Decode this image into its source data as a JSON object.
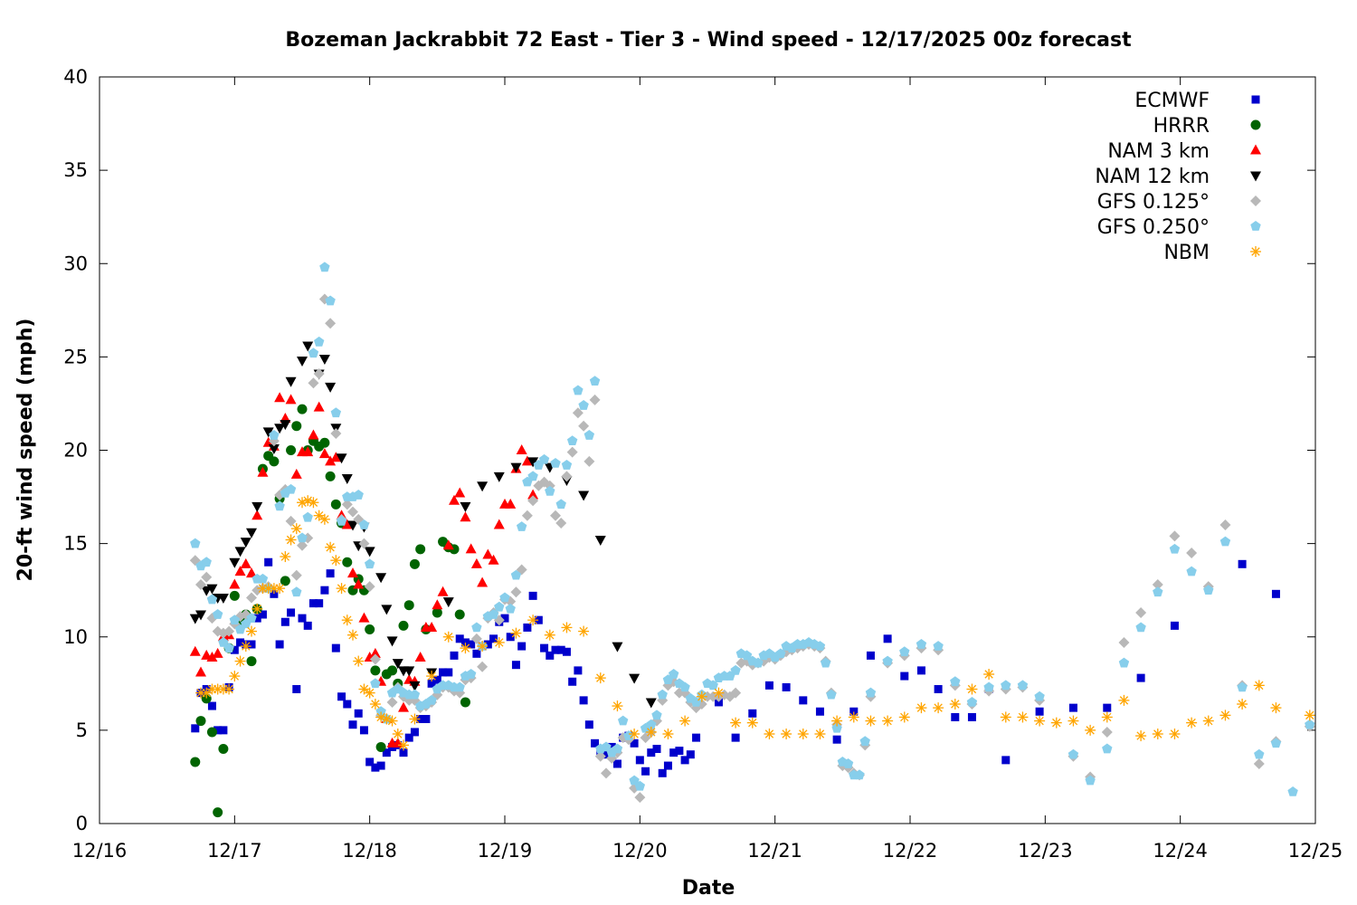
{
  "chart_data": {
    "type": "scatter",
    "title": "Bozeman Jackrabbit 72 East - Tier 3 - Wind speed - 12/17/2025 00z forecast",
    "xlabel": "Date",
    "ylabel": "20-ft wind speed (mph)",
    "x_units": "hours since 12/16 00:00",
    "xlim": [
      0,
      216
    ],
    "ylim": [
      0,
      40
    ],
    "xticks": [
      {
        "h": 0,
        "label": "12/16"
      },
      {
        "h": 24,
        "label": "12/17"
      },
      {
        "h": 48,
        "label": "12/18"
      },
      {
        "h": 72,
        "label": "12/19"
      },
      {
        "h": 96,
        "label": "12/20"
      },
      {
        "h": 120,
        "label": "12/21"
      },
      {
        "h": 144,
        "label": "12/22"
      },
      {
        "h": 168,
        "label": "12/23"
      },
      {
        "h": 192,
        "label": "12/24"
      },
      {
        "h": 216,
        "label": "12/25"
      }
    ],
    "yticks": [
      0,
      5,
      10,
      15,
      20,
      25,
      30,
      35,
      40
    ],
    "grid": false,
    "legend_position": "top-right",
    "series": [
      {
        "name": "ECMWF",
        "marker": "square",
        "color": "#0000cc",
        "segments": [
          {
            "h0": 17,
            "dh": 1,
            "v": [
              5.1,
              7.0,
              7.2,
              6.3,
              5.0,
              5.0,
              7.3,
              9.3,
              9.7,
              9.6,
              9.6,
              11.0,
              11.2,
              14.0,
              12.3,
              9.6,
              10.8,
              11.3,
              7.2,
              11.0,
              10.6,
              11.8,
              11.8,
              12.5,
              13.4,
              9.4,
              6.8,
              6.4,
              5.3,
              5.9,
              5.0,
              3.3,
              3.0,
              3.1,
              3.8,
              4.1,
              4.2,
              3.8,
              4.6,
              4.9,
              5.6,
              5.6,
              7.5,
              7.7,
              8.1,
              8.1,
              9.0,
              9.9,
              9.7,
              9.6,
              9.1,
              9.5,
              9.6,
              9.9,
              10.8,
              11.0,
              10.0,
              8.5,
              9.5,
              10.5,
              12.2,
              10.9,
              9.4,
              9.0,
              9.3,
              9.3,
              9.2,
              7.6,
              8.2,
              6.6,
              5.3,
              4.3,
              3.9,
              3.7,
              4.1,
              3.2,
              4.6,
              4.7,
              4.3,
              3.4,
              2.8,
              3.8,
              4.0,
              2.7,
              3.1,
              3.8,
              3.9,
              3.4,
              3.7,
              4.6
            ]
          },
          {
            "h0": 110,
            "dh": 3,
            "v": [
              6.5,
              4.6,
              5.9,
              7.4,
              7.3,
              6.6,
              6.0,
              4.5,
              6.0,
              9.0,
              9.9,
              7.9,
              8.2,
              7.2,
              5.7,
              5.7,
              7.2
            ]
          },
          {
            "h0": 161,
            "dh": 6,
            "v": [
              3.4,
              6.0,
              6.2,
              6.2,
              7.8,
              10.6,
              null,
              13.9,
              12.3
            ]
          }
        ]
      },
      {
        "name": "HRRR",
        "marker": "circle",
        "color": "#006400",
        "segments": [
          {
            "h0": 17,
            "dh": 1,
            "v": [
              3.3,
              5.5,
              6.7,
              4.9,
              0.6,
              4.0,
              9.4,
              12.2,
              10.8,
              11.2,
              8.7,
              11.5,
              19.0,
              19.7,
              19.4,
              17.4,
              13.0,
              20.0,
              21.3,
              22.2,
              20.0,
              20.5,
              20.2,
              20.4,
              18.6,
              17.1,
              16.1,
              14.0,
              12.5,
              13.1,
              12.5,
              10.4,
              8.2,
              4.1,
              8.0,
              8.2,
              7.5,
              10.6,
              11.7,
              13.9,
              14.7,
              10.4,
              null,
              11.3,
              15.1,
              14.8,
              14.7,
              11.2,
              6.5
            ]
          }
        ]
      },
      {
        "name": "NAM 3 km",
        "marker": "triangle-up",
        "color": "#ff0000",
        "segments": [
          {
            "h0": 17,
            "dh": 1,
            "v": [
              9.2,
              8.1,
              9.0,
              8.9,
              9.1,
              10.0,
              10.1,
              12.8,
              13.5,
              13.9,
              13.4,
              16.5,
              18.8,
              20.4,
              20.2,
              22.8,
              21.7,
              22.7,
              18.7,
              19.9,
              19.9,
              20.8,
              22.3,
              19.8,
              19.4,
              19.6,
              16.5,
              16.0,
              13.4,
              12.8,
              11.0,
              8.9,
              9.1,
              7.6,
              5.6,
              4.3,
              4.3,
              6.2,
              7.7,
              7.6,
              8.9,
              10.5,
              10.5,
              11.7,
              12.4,
              14.9,
              17.3,
              17.7,
              16.4,
              14.7,
              13.9,
              12.9,
              14.4,
              14.1,
              16.0,
              17.1,
              17.1,
              19.0,
              20.0,
              19.4,
              17.6
            ]
          }
        ]
      },
      {
        "name": "NAM 12 km",
        "marker": "triangle-down",
        "color": "#000000",
        "segments": [
          {
            "h0": 17,
            "dh": 1,
            "v": [
              11.0,
              11.2,
              12.5,
              12.6,
              12.1,
              12.1,
              null,
              14.0,
              14.6,
              15.1,
              15.6,
              17.0,
              null,
              21.0,
              20.1,
              21.2,
              21.4,
              23.7,
              null,
              24.8,
              25.6,
              null,
              24.1,
              24.9,
              23.4,
              21.2,
              19.6,
              18.5,
              16.0,
              14.9,
              15.9,
              14.6,
              null,
              13.2,
              11.5,
              9.8,
              8.6,
              8.2,
              8.2,
              7.4
            ]
          },
          {
            "h0": 59,
            "dh": 3,
            "v": [
              8.1,
              11.9,
              17.0,
              18.1,
              18.6,
              19.1,
              19.4,
              19.1,
              18.4,
              17.6,
              15.2,
              9.5,
              7.8,
              6.5
            ]
          }
        ]
      },
      {
        "name": "GFS 0.125°",
        "marker": "diamond",
        "color": "#b8b8b8",
        "segments": [
          {
            "h0": 17,
            "dh": 1,
            "v": [
              14.1,
              12.8,
              13.2,
              11.0,
              10.3,
              10.2,
              10.3,
              10.7,
              11.1,
              11.2,
              12.1,
              12.5,
              12.6,
              12.7,
              20.5,
              17.6,
              17.9,
              16.2,
              13.3,
              14.9,
              15.3,
              23.6,
              24.1,
              28.1,
              26.8,
              20.9,
              16.3,
              17.1,
              16.7,
              16.3,
              15.0,
              12.7,
              8.8,
              5.8,
              5.6,
              6.5,
              7.3,
              6.8,
              6.6,
              6.6,
              6.2,
              6.3,
              6.5,
              6.9,
              7.3,
              7.3,
              7.1,
              7.0,
              7.7,
              7.8,
              9.9,
              8.4,
              11.0,
              11.3,
              10.9,
              12.0,
              11.9,
              12.4,
              13.6,
              16.5,
              17.3,
              18.1,
              18.3,
              18.1,
              16.5,
              16.1,
              18.6,
              19.9,
              22.0,
              21.3,
              19.4,
              22.7
            ]
          },
          {
            "h0": 89,
            "dh": 1,
            "v": [
              3.6,
              2.7,
              3.5,
              3.8,
              4.6,
              4.5,
              1.9,
              1.4,
              4.6,
              4.9,
              5.5,
              6.6,
              7.4,
              7.6,
              7.0,
              7.0,
              6.5,
              6.2,
              6.4,
              6.8,
              6.8,
              6.8,
              6.9,
              6.8,
              7.0,
              8.6,
              8.7,
              8.5,
              8.6,
              8.7,
              8.9,
              8.8,
              9.0,
              9.2,
              9.3,
              9.4,
              9.5,
              9.6,
              9.5,
              9.4,
              8.7,
              7.0,
              5.3,
              3.1,
              3.0,
              2.7,
              2.6,
              4.2,
              6.8
            ]
          },
          {
            "h0": 140,
            "dh": 3,
            "v": [
              8.6,
              9.0,
              9.4,
              9.3,
              7.4,
              6.4,
              7.1,
              7.2,
              7.3,
              6.6,
              null,
              3.6,
              2.5,
              4.9,
              9.7,
              11.3,
              12.8,
              15.4,
              14.5,
              12.7,
              16.0,
              7.4,
              3.2,
              4.4,
              null,
              5.2
            ]
          }
        ]
      },
      {
        "name": "GFS 0.250°",
        "marker": "pentagon",
        "color": "#87ceeb",
        "segments": [
          {
            "h0": 17,
            "dh": 1,
            "v": [
              15.0,
              13.8,
              14.0,
              12.0,
              11.2,
              9.7,
              9.4,
              10.9,
              10.4,
              10.7,
              11.0,
              13.1,
              13.1,
              12.6,
              20.8,
              17.0,
              17.7,
              17.9,
              12.4,
              15.3,
              16.4,
              25.2,
              25.8,
              29.8,
              28.0,
              22.0,
              16.2,
              17.5,
              17.5,
              17.6,
              16.0,
              13.9,
              7.5,
              6.0,
              5.6,
              7.0,
              7.2,
              7.0,
              6.9,
              6.9,
              6.3,
              6.4,
              6.6,
              7.2,
              7.4,
              7.4,
              7.3,
              7.3,
              7.9,
              8.0,
              10.5,
              9.5,
              11.1,
              11.2,
              11.6,
              12.1,
              11.5,
              13.3,
              15.9,
              18.3,
              18.6,
              19.2,
              19.5,
              17.8,
              19.3,
              17.1,
              19.2,
              20.5,
              23.2,
              22.4,
              20.8,
              23.7
            ]
          },
          {
            "h0": 89,
            "dh": 1,
            "v": [
              4.0,
              4.1,
              3.8,
              4.0,
              5.5,
              4.7,
              2.3,
              2.0,
              5.1,
              5.3,
              5.8,
              6.9,
              7.7,
              8.0,
              7.5,
              7.3,
              6.7,
              6.5,
              6.9,
              7.5,
              7.4,
              7.8,
              7.9,
              7.9,
              8.2,
              9.1,
              9.0,
              8.7,
              8.6,
              9.0,
              9.1,
              8.9,
              9.1,
              9.5,
              9.4,
              9.6,
              9.6,
              9.7,
              9.6,
              9.5,
              8.6,
              6.9,
              5.1,
              3.3,
              3.2,
              2.6,
              2.6,
              4.4,
              7.0
            ]
          },
          {
            "h0": 140,
            "dh": 3,
            "v": [
              8.7,
              9.2,
              9.6,
              9.5,
              7.6,
              6.5,
              7.3,
              7.4,
              7.4,
              6.8,
              null,
              3.7,
              2.3,
              4.0,
              8.6,
              10.5,
              12.4,
              14.7,
              13.5,
              12.5,
              15.1,
              7.3,
              3.7,
              4.3,
              1.7,
              5.3
            ]
          }
        ]
      },
      {
        "name": "NBM",
        "marker": "asterisk",
        "color": "#ffa500",
        "segments": [
          {
            "h0": 18,
            "dh": 1,
            "v": [
              7.0,
              7.0,
              7.2,
              7.2,
              7.2,
              7.2,
              7.9,
              8.7,
              9.5,
              10.3,
              11.5,
              12.6,
              12.6,
              12.6,
              12.6,
              14.3,
              15.2,
              15.8,
              17.2,
              17.3,
              17.2,
              16.5,
              16.3,
              14.8,
              14.1,
              12.6,
              10.9,
              10.1,
              8.7,
              7.2,
              7.0,
              6.4,
              5.7,
              5.6,
              5.5,
              4.8,
              4.2
            ]
          },
          {
            "h0": 56,
            "dh": 3,
            "v": [
              5.6,
              7.9,
              10.0,
              9.4,
              9.5,
              9.7,
              10.2,
              10.9,
              10.1,
              10.5,
              10.3,
              7.8,
              6.3,
              4.8,
              4.9,
              4.8,
              5.5,
              6.8,
              7.0,
              5.4,
              5.4,
              4.8,
              4.8,
              4.8,
              4.8,
              5.5,
              5.7,
              5.5,
              5.5,
              5.7,
              6.2,
              6.2,
              6.4,
              7.2,
              8.0,
              5.7,
              5.7,
              5.5,
              5.4,
              5.5,
              5.0,
              5.7,
              6.6,
              4.7,
              4.8,
              4.8,
              5.4,
              5.5,
              5.8,
              6.4,
              7.4,
              6.2,
              null,
              5.8
            ]
          }
        ]
      }
    ]
  }
}
